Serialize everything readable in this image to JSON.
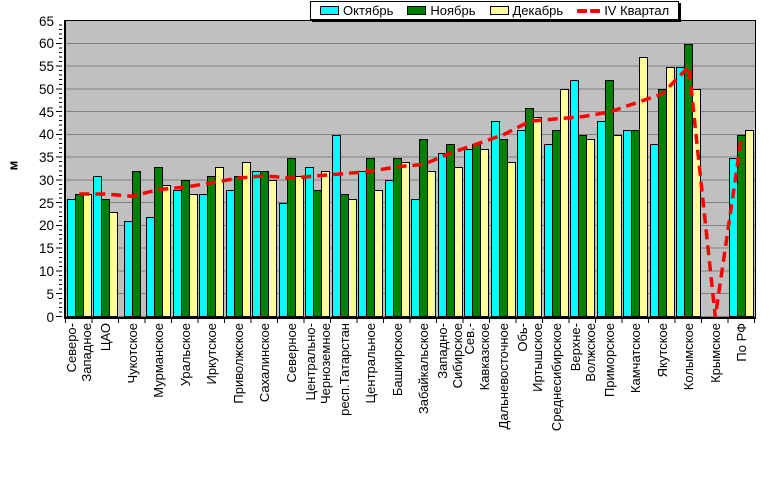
{
  "chart_data": {
    "type": "bar",
    "title": "",
    "xlabel": "",
    "ylabel": "м",
    "ylim": [
      0,
      65
    ],
    "y_tick_step": 5,
    "grid": true,
    "legend_position": "top-center",
    "plot_bg": "#C0C0C0",
    "gridline_color": "#808080",
    "categories": [
      "Северо-\nЗападное",
      "ЦАО",
      "Чукотское",
      "Мурманское",
      "Уральское",
      "Иркутское",
      "Приволжское",
      "Сахалинское",
      "Северное",
      "Центрально-\nЧерноземное",
      "респ.Татарстан",
      "Центральное",
      "Башкирское",
      "Забайкальское",
      "Западно-\nСибирское",
      "Сев.-\nКавказское",
      "Дальневосточное",
      "Обь-\nИртышское",
      "Среднесибирское",
      "Верхне-\nВолжское",
      "Приморское",
      "Камчатское",
      "Якутское",
      "Колымское",
      "Крымское",
      "По РФ"
    ],
    "series": [
      {
        "name": "Октябрь",
        "type": "bar",
        "color": "#00FFFF",
        "values": [
          26,
          31,
          21,
          22,
          28,
          27,
          28,
          32,
          25,
          33,
          40,
          32,
          30,
          26,
          36,
          37,
          43,
          41,
          38,
          52,
          43,
          41,
          38,
          55,
          null,
          35
        ]
      },
      {
        "name": "Ноябрь",
        "type": "bar",
        "color": "#008000",
        "values": [
          27,
          26,
          32,
          33,
          30,
          31,
          31,
          32,
          35,
          28,
          27,
          35,
          35,
          39,
          38,
          38,
          39,
          46,
          41,
          40,
          52,
          41,
          50,
          60,
          null,
          40
        ]
      },
      {
        "name": "Декабрь",
        "type": "bar",
        "color": "#FFFF99",
        "values": [
          27,
          23,
          null,
          29,
          27,
          33,
          34,
          30,
          31,
          32,
          26,
          28,
          34,
          32,
          33,
          37,
          34,
          44,
          50,
          39,
          40,
          57,
          55,
          50,
          null,
          41
        ]
      },
      {
        "name": "IV Квартал",
        "type": "line",
        "color": "#FF0000",
        "style": "dashed",
        "values": [
          27,
          27,
          26.5,
          28,
          28.5,
          29.5,
          30.5,
          31,
          30.5,
          31,
          31.5,
          32,
          33,
          33.5,
          36,
          38,
          40,
          43,
          43.5,
          44,
          45,
          47,
          49,
          55,
          0,
          40
        ]
      }
    ]
  }
}
